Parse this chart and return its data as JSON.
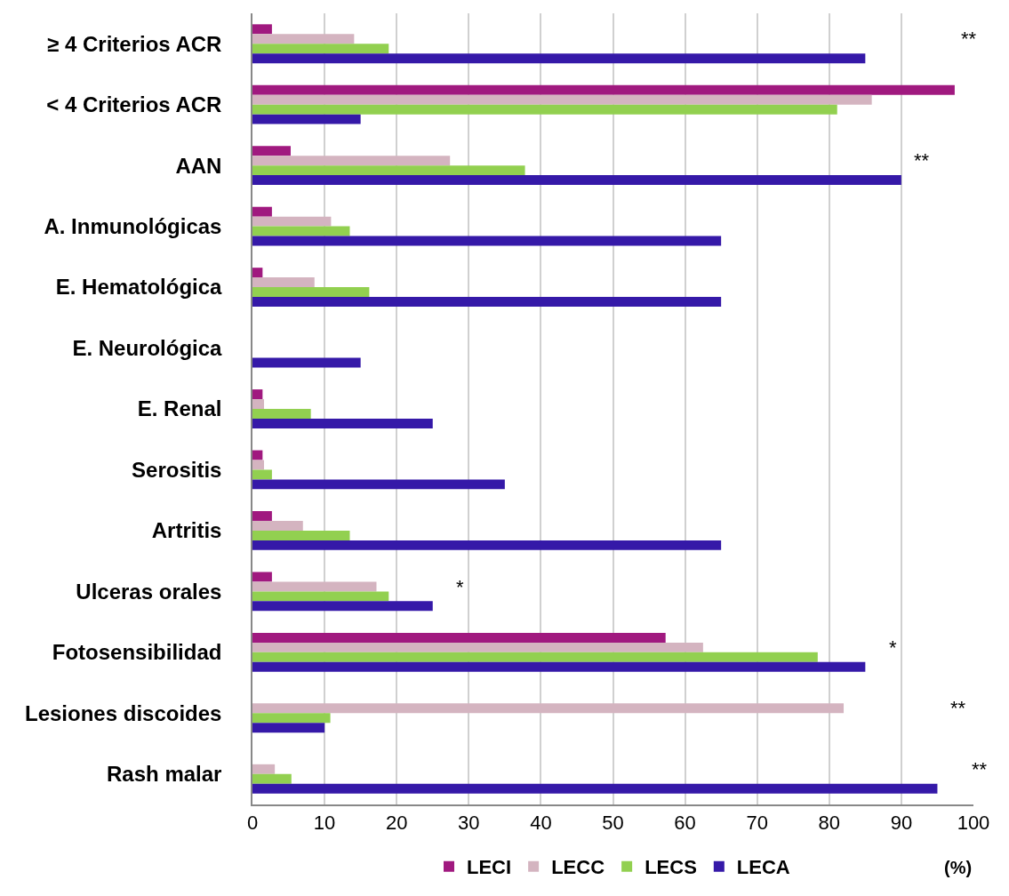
{
  "chart_data": {
    "type": "bar",
    "orientation": "horizontal",
    "categories": [
      "≥ 4 Criterios ACR",
      "< 4 Criterios ACR",
      "AAN",
      "A. Inmunológicas",
      "E. Hematológica",
      "E. Neurológica",
      "E. Renal",
      "Serositis",
      "Artritis",
      "Ulceras orales",
      "Fotosensibilidad",
      "Lesiones discoides",
      "Rash malar"
    ],
    "series": [
      {
        "name": "LECI",
        "color": "#a0197f",
        "values": [
          2.7,
          97.4,
          5.3,
          2.7,
          1.4,
          null,
          1.4,
          1.4,
          2.7,
          2.7,
          57.3,
          null,
          null
        ]
      },
      {
        "name": "LECC",
        "color": "#d4b4c0",
        "values": [
          14.1,
          85.9,
          27.4,
          10.9,
          8.6,
          null,
          1.6,
          1.6,
          7,
          17.2,
          62.5,
          82,
          3.1
        ]
      },
      {
        "name": "LECS",
        "color": "#92d050",
        "values": [
          18.9,
          81.1,
          37.8,
          13.5,
          16.2,
          null,
          8.1,
          2.7,
          13.5,
          18.9,
          78.4,
          10.8,
          5.4
        ]
      },
      {
        "name": "LECA",
        "color": "#3519a8",
        "values": [
          85,
          15,
          90,
          65,
          65,
          15,
          25,
          35,
          65,
          25,
          85,
          10,
          95
        ]
      }
    ],
    "xlim": [
      0,
      100
    ],
    "xticks": [
      0,
      10,
      20,
      30,
      40,
      50,
      60,
      70,
      80,
      90,
      100
    ],
    "grid": "x",
    "legend": "bottom",
    "annotations": [
      "**",
      "**",
      "*",
      "*",
      "**",
      "**",
      "(%)"
    ]
  }
}
